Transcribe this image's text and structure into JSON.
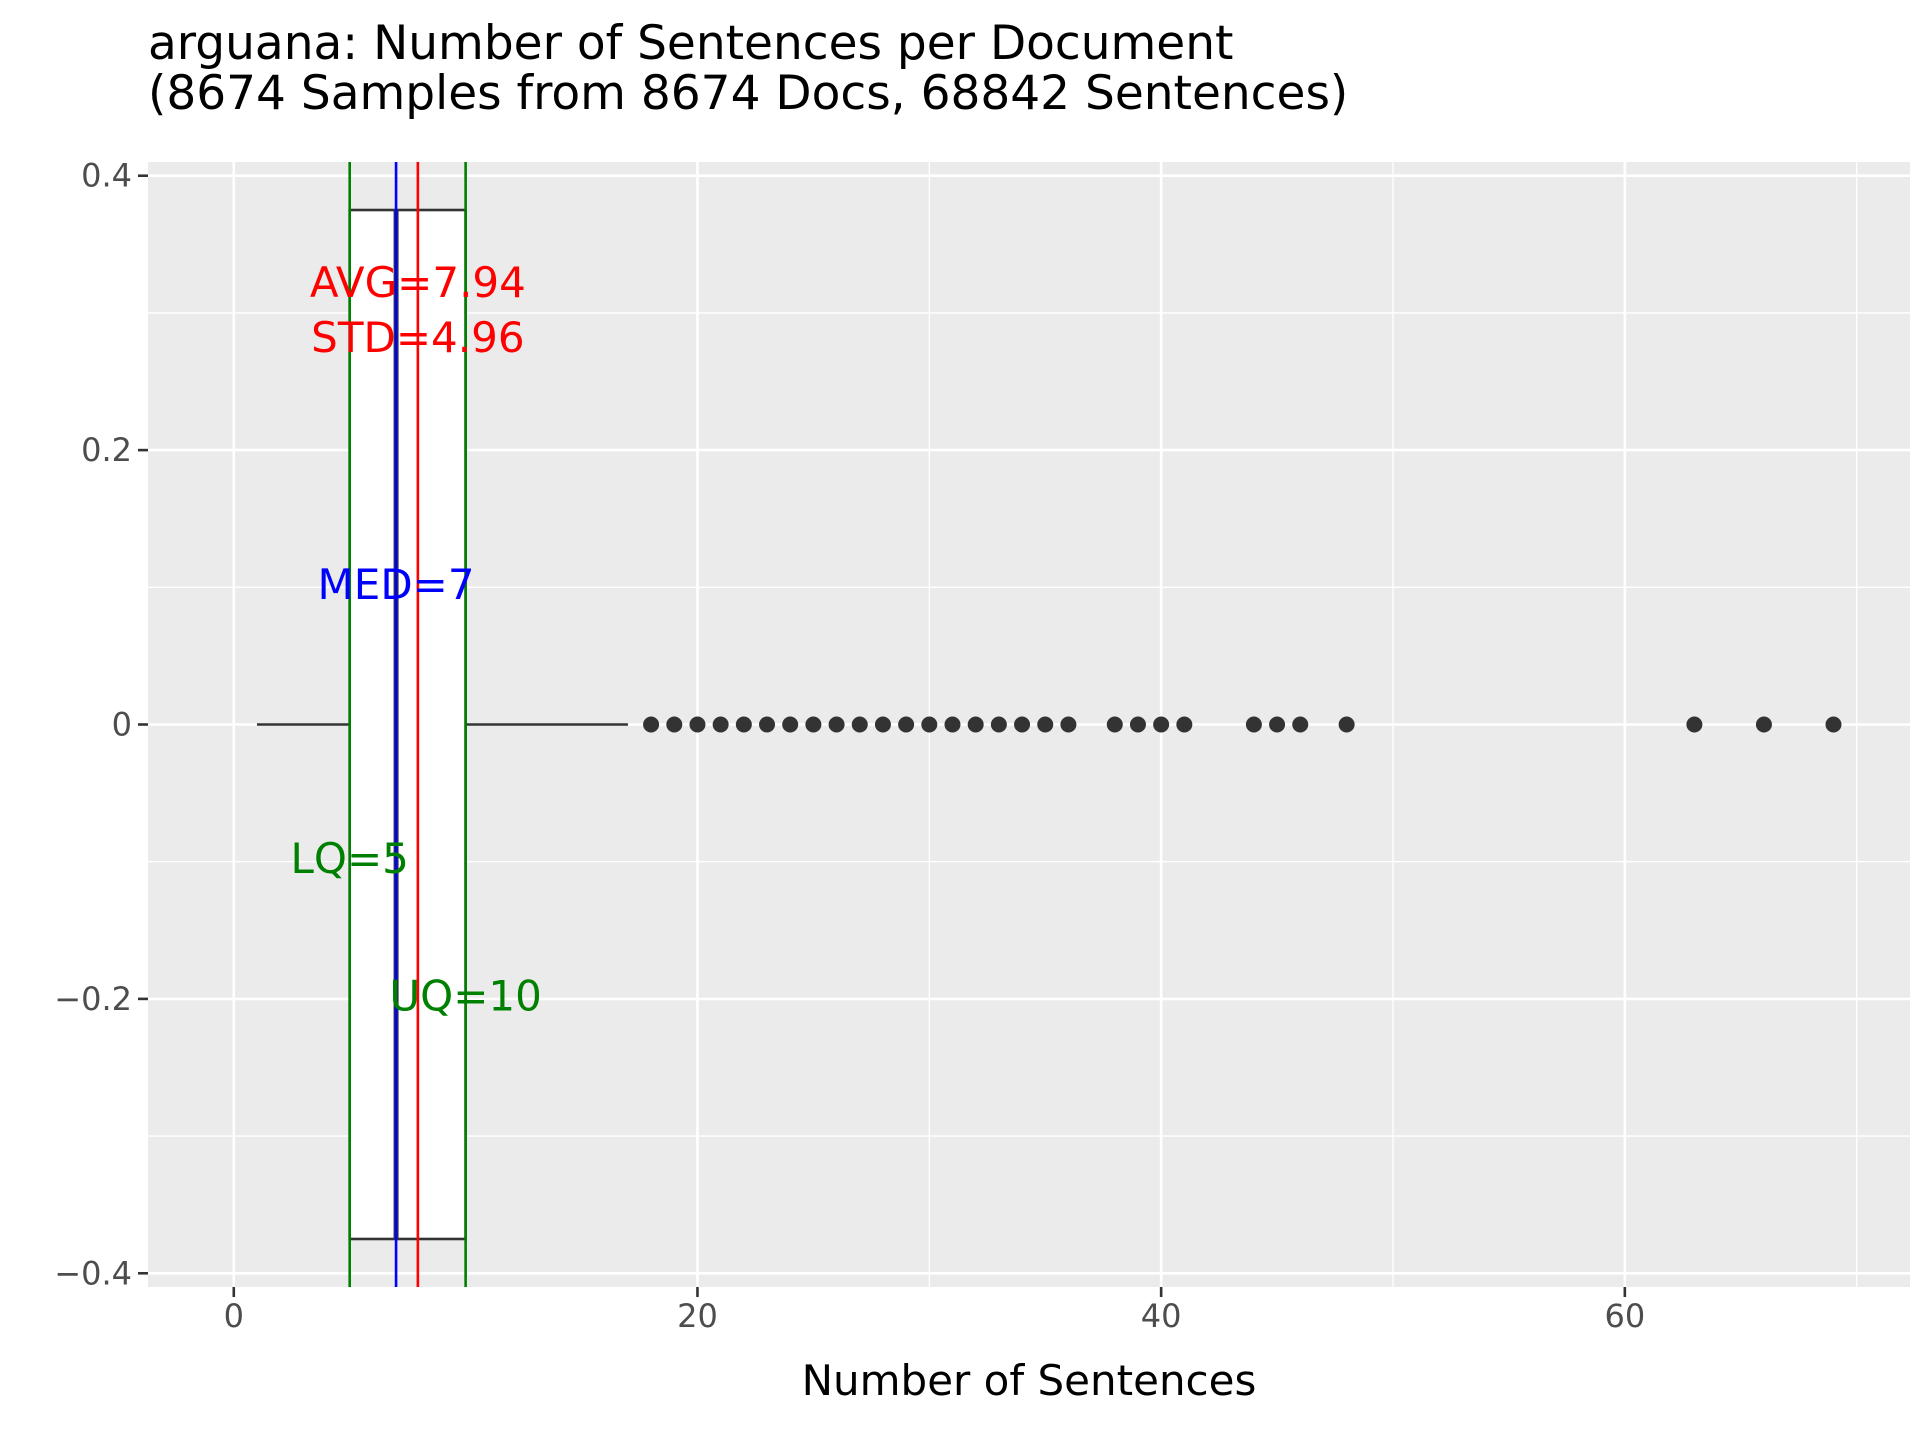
{
  "chart_data": {
    "type": "boxplot",
    "title": "arguana: Number of Sentences per Document",
    "subtitle": "(8674 Samples from 8674 Docs, 68842 Sentences)",
    "xlabel": "Number of Sentences",
    "ylabel": "",
    "xlim": [
      -3.7,
      72.3
    ],
    "ylim": [
      -0.41,
      0.41
    ],
    "x_ticks": [
      0,
      20,
      40,
      60
    ],
    "x_tick_labels": [
      "0",
      "20",
      "40",
      "60"
    ],
    "y_ticks": [
      0.4,
      0.2,
      0,
      -0.2,
      -0.4
    ],
    "y_tick_labels": [
      "0.4",
      "0.2",
      "0",
      "−0.2",
      "−0.4"
    ],
    "grid": true,
    "box": {
      "lower_whisker": 1,
      "q1": 5,
      "median": 7,
      "q3": 10,
      "upper_whisker": 17,
      "y_center": 0,
      "half_height": 0.375
    },
    "outliers": [
      18,
      19,
      20,
      21,
      22,
      23,
      24,
      25,
      26,
      27,
      28,
      29,
      30,
      31,
      32,
      33,
      34,
      35,
      36,
      38,
      39,
      40,
      41,
      44,
      45,
      46,
      48,
      63,
      66,
      69
    ],
    "reference_lines": [
      {
        "name": "mean",
        "value": 7.94,
        "color": "#ff0000"
      },
      {
        "name": "median",
        "value": 7,
        "color": "#0000ff"
      },
      {
        "name": "lower-quartile",
        "value": 5,
        "color": "#008000"
      },
      {
        "name": "upper-quartile",
        "value": 10,
        "color": "#008000"
      }
    ],
    "annotations": [
      {
        "name": "avg-label",
        "text": "AVG=7.94",
        "x": 7.94,
        "y": 0.32,
        "color": "#ff0000"
      },
      {
        "name": "std-label",
        "text": "STD=4.96",
        "x": 7.94,
        "y": 0.28,
        "color": "#ff0000"
      },
      {
        "name": "med-label",
        "text": "MED=7",
        "x": 7,
        "y": 0.1,
        "color": "#0000ff"
      },
      {
        "name": "lq-label",
        "text": "LQ=5",
        "x": 5,
        "y": -0.1,
        "color": "#008000"
      },
      {
        "name": "uq-label",
        "text": "UQ=10",
        "x": 10,
        "y": -0.2,
        "color": "#008000"
      }
    ],
    "colors": {
      "panel_background": "#ebebeb",
      "grid": "#ffffff",
      "box_outline": "#333333",
      "points": "#333333"
    }
  }
}
